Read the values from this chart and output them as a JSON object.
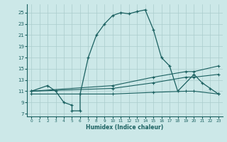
{
  "xlabel": "Humidex (Indice chaleur)",
  "bg_color": "#cce8e8",
  "grid_color": "#aacccc",
  "line_color": "#1a6060",
  "xlim": [
    -0.5,
    23.5
  ],
  "ylim": [
    6.5,
    26.5
  ],
  "yticks": [
    7,
    9,
    11,
    13,
    15,
    17,
    19,
    21,
    23,
    25
  ],
  "xticks": [
    0,
    1,
    2,
    3,
    4,
    5,
    6,
    7,
    8,
    9,
    10,
    11,
    12,
    13,
    14,
    15,
    16,
    17,
    18,
    19,
    20,
    21,
    22,
    23
  ],
  "line1_x": [
    0,
    2,
    3,
    4,
    5,
    5,
    6,
    6,
    7,
    8,
    9,
    10,
    11,
    12,
    13,
    14,
    15,
    16,
    17,
    18,
    20,
    21,
    22,
    23
  ],
  "line1_y": [
    11,
    12,
    11,
    9,
    8.5,
    7.5,
    7.5,
    10.5,
    17,
    21,
    23,
    24.5,
    25,
    24.8,
    25.2,
    25.5,
    22,
    17,
    15.5,
    11,
    14,
    12.5,
    11.5,
    10.5
  ],
  "line2_x": [
    0,
    10,
    15,
    19,
    20,
    23
  ],
  "line2_y": [
    11,
    12,
    13.5,
    14.5,
    14.5,
    15.5
  ],
  "line3_x": [
    0,
    10,
    15,
    19,
    20,
    23
  ],
  "line3_y": [
    11,
    11.5,
    12.5,
    13.5,
    13.5,
    14
  ],
  "line4_x": [
    0,
    10,
    15,
    19,
    20,
    23
  ],
  "line4_y": [
    10.5,
    10.5,
    10.8,
    11,
    11,
    10.5
  ]
}
